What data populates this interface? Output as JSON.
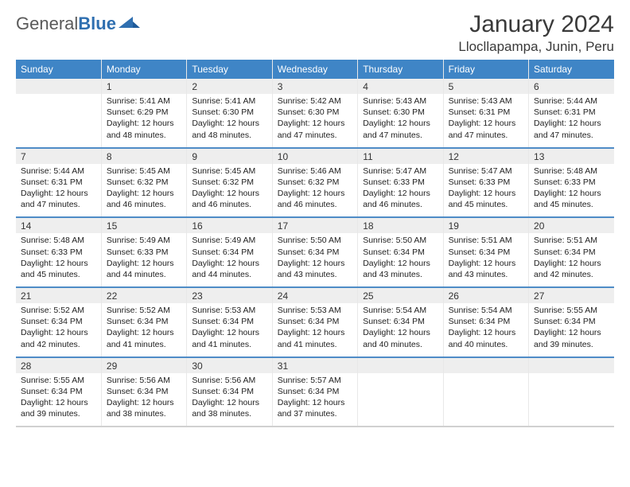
{
  "brand": {
    "part1": "General",
    "part2": "Blue"
  },
  "title": "January 2024",
  "location": "Llocllapampa, Junin, Peru",
  "colors": {
    "header_bg": "#3f85c6",
    "daynum_bg": "#eeeeee",
    "row_separator": "#4f8cc7",
    "last_row_separator": "#d0d0d0",
    "logo_gray": "#5a5a5a",
    "logo_blue": "#2f6fb0",
    "text": "#222222",
    "cell_border": "#e8e8e8"
  },
  "weekdays": [
    "Sunday",
    "Monday",
    "Tuesday",
    "Wednesday",
    "Thursday",
    "Friday",
    "Saturday"
  ],
  "weeks": [
    [
      null,
      {
        "n": "1",
        "sr": "Sunrise: 5:41 AM",
        "ss": "Sunset: 6:29 PM",
        "d1": "Daylight: 12 hours",
        "d2": "and 48 minutes."
      },
      {
        "n": "2",
        "sr": "Sunrise: 5:41 AM",
        "ss": "Sunset: 6:30 PM",
        "d1": "Daylight: 12 hours",
        "d2": "and 48 minutes."
      },
      {
        "n": "3",
        "sr": "Sunrise: 5:42 AM",
        "ss": "Sunset: 6:30 PM",
        "d1": "Daylight: 12 hours",
        "d2": "and 47 minutes."
      },
      {
        "n": "4",
        "sr": "Sunrise: 5:43 AM",
        "ss": "Sunset: 6:30 PM",
        "d1": "Daylight: 12 hours",
        "d2": "and 47 minutes."
      },
      {
        "n": "5",
        "sr": "Sunrise: 5:43 AM",
        "ss": "Sunset: 6:31 PM",
        "d1": "Daylight: 12 hours",
        "d2": "and 47 minutes."
      },
      {
        "n": "6",
        "sr": "Sunrise: 5:44 AM",
        "ss": "Sunset: 6:31 PM",
        "d1": "Daylight: 12 hours",
        "d2": "and 47 minutes."
      }
    ],
    [
      {
        "n": "7",
        "sr": "Sunrise: 5:44 AM",
        "ss": "Sunset: 6:31 PM",
        "d1": "Daylight: 12 hours",
        "d2": "and 47 minutes."
      },
      {
        "n": "8",
        "sr": "Sunrise: 5:45 AM",
        "ss": "Sunset: 6:32 PM",
        "d1": "Daylight: 12 hours",
        "d2": "and 46 minutes."
      },
      {
        "n": "9",
        "sr": "Sunrise: 5:45 AM",
        "ss": "Sunset: 6:32 PM",
        "d1": "Daylight: 12 hours",
        "d2": "and 46 minutes."
      },
      {
        "n": "10",
        "sr": "Sunrise: 5:46 AM",
        "ss": "Sunset: 6:32 PM",
        "d1": "Daylight: 12 hours",
        "d2": "and 46 minutes."
      },
      {
        "n": "11",
        "sr": "Sunrise: 5:47 AM",
        "ss": "Sunset: 6:33 PM",
        "d1": "Daylight: 12 hours",
        "d2": "and 46 minutes."
      },
      {
        "n": "12",
        "sr": "Sunrise: 5:47 AM",
        "ss": "Sunset: 6:33 PM",
        "d1": "Daylight: 12 hours",
        "d2": "and 45 minutes."
      },
      {
        "n": "13",
        "sr": "Sunrise: 5:48 AM",
        "ss": "Sunset: 6:33 PM",
        "d1": "Daylight: 12 hours",
        "d2": "and 45 minutes."
      }
    ],
    [
      {
        "n": "14",
        "sr": "Sunrise: 5:48 AM",
        "ss": "Sunset: 6:33 PM",
        "d1": "Daylight: 12 hours",
        "d2": "and 45 minutes."
      },
      {
        "n": "15",
        "sr": "Sunrise: 5:49 AM",
        "ss": "Sunset: 6:33 PM",
        "d1": "Daylight: 12 hours",
        "d2": "and 44 minutes."
      },
      {
        "n": "16",
        "sr": "Sunrise: 5:49 AM",
        "ss": "Sunset: 6:34 PM",
        "d1": "Daylight: 12 hours",
        "d2": "and 44 minutes."
      },
      {
        "n": "17",
        "sr": "Sunrise: 5:50 AM",
        "ss": "Sunset: 6:34 PM",
        "d1": "Daylight: 12 hours",
        "d2": "and 43 minutes."
      },
      {
        "n": "18",
        "sr": "Sunrise: 5:50 AM",
        "ss": "Sunset: 6:34 PM",
        "d1": "Daylight: 12 hours",
        "d2": "and 43 minutes."
      },
      {
        "n": "19",
        "sr": "Sunrise: 5:51 AM",
        "ss": "Sunset: 6:34 PM",
        "d1": "Daylight: 12 hours",
        "d2": "and 43 minutes."
      },
      {
        "n": "20",
        "sr": "Sunrise: 5:51 AM",
        "ss": "Sunset: 6:34 PM",
        "d1": "Daylight: 12 hours",
        "d2": "and 42 minutes."
      }
    ],
    [
      {
        "n": "21",
        "sr": "Sunrise: 5:52 AM",
        "ss": "Sunset: 6:34 PM",
        "d1": "Daylight: 12 hours",
        "d2": "and 42 minutes."
      },
      {
        "n": "22",
        "sr": "Sunrise: 5:52 AM",
        "ss": "Sunset: 6:34 PM",
        "d1": "Daylight: 12 hours",
        "d2": "and 41 minutes."
      },
      {
        "n": "23",
        "sr": "Sunrise: 5:53 AM",
        "ss": "Sunset: 6:34 PM",
        "d1": "Daylight: 12 hours",
        "d2": "and 41 minutes."
      },
      {
        "n": "24",
        "sr": "Sunrise: 5:53 AM",
        "ss": "Sunset: 6:34 PM",
        "d1": "Daylight: 12 hours",
        "d2": "and 41 minutes."
      },
      {
        "n": "25",
        "sr": "Sunrise: 5:54 AM",
        "ss": "Sunset: 6:34 PM",
        "d1": "Daylight: 12 hours",
        "d2": "and 40 minutes."
      },
      {
        "n": "26",
        "sr": "Sunrise: 5:54 AM",
        "ss": "Sunset: 6:34 PM",
        "d1": "Daylight: 12 hours",
        "d2": "and 40 minutes."
      },
      {
        "n": "27",
        "sr": "Sunrise: 5:55 AM",
        "ss": "Sunset: 6:34 PM",
        "d1": "Daylight: 12 hours",
        "d2": "and 39 minutes."
      }
    ],
    [
      {
        "n": "28",
        "sr": "Sunrise: 5:55 AM",
        "ss": "Sunset: 6:34 PM",
        "d1": "Daylight: 12 hours",
        "d2": "and 39 minutes."
      },
      {
        "n": "29",
        "sr": "Sunrise: 5:56 AM",
        "ss": "Sunset: 6:34 PM",
        "d1": "Daylight: 12 hours",
        "d2": "and 38 minutes."
      },
      {
        "n": "30",
        "sr": "Sunrise: 5:56 AM",
        "ss": "Sunset: 6:34 PM",
        "d1": "Daylight: 12 hours",
        "d2": "and 38 minutes."
      },
      {
        "n": "31",
        "sr": "Sunrise: 5:57 AM",
        "ss": "Sunset: 6:34 PM",
        "d1": "Daylight: 12 hours",
        "d2": "and 37 minutes."
      },
      null,
      null,
      null
    ]
  ]
}
